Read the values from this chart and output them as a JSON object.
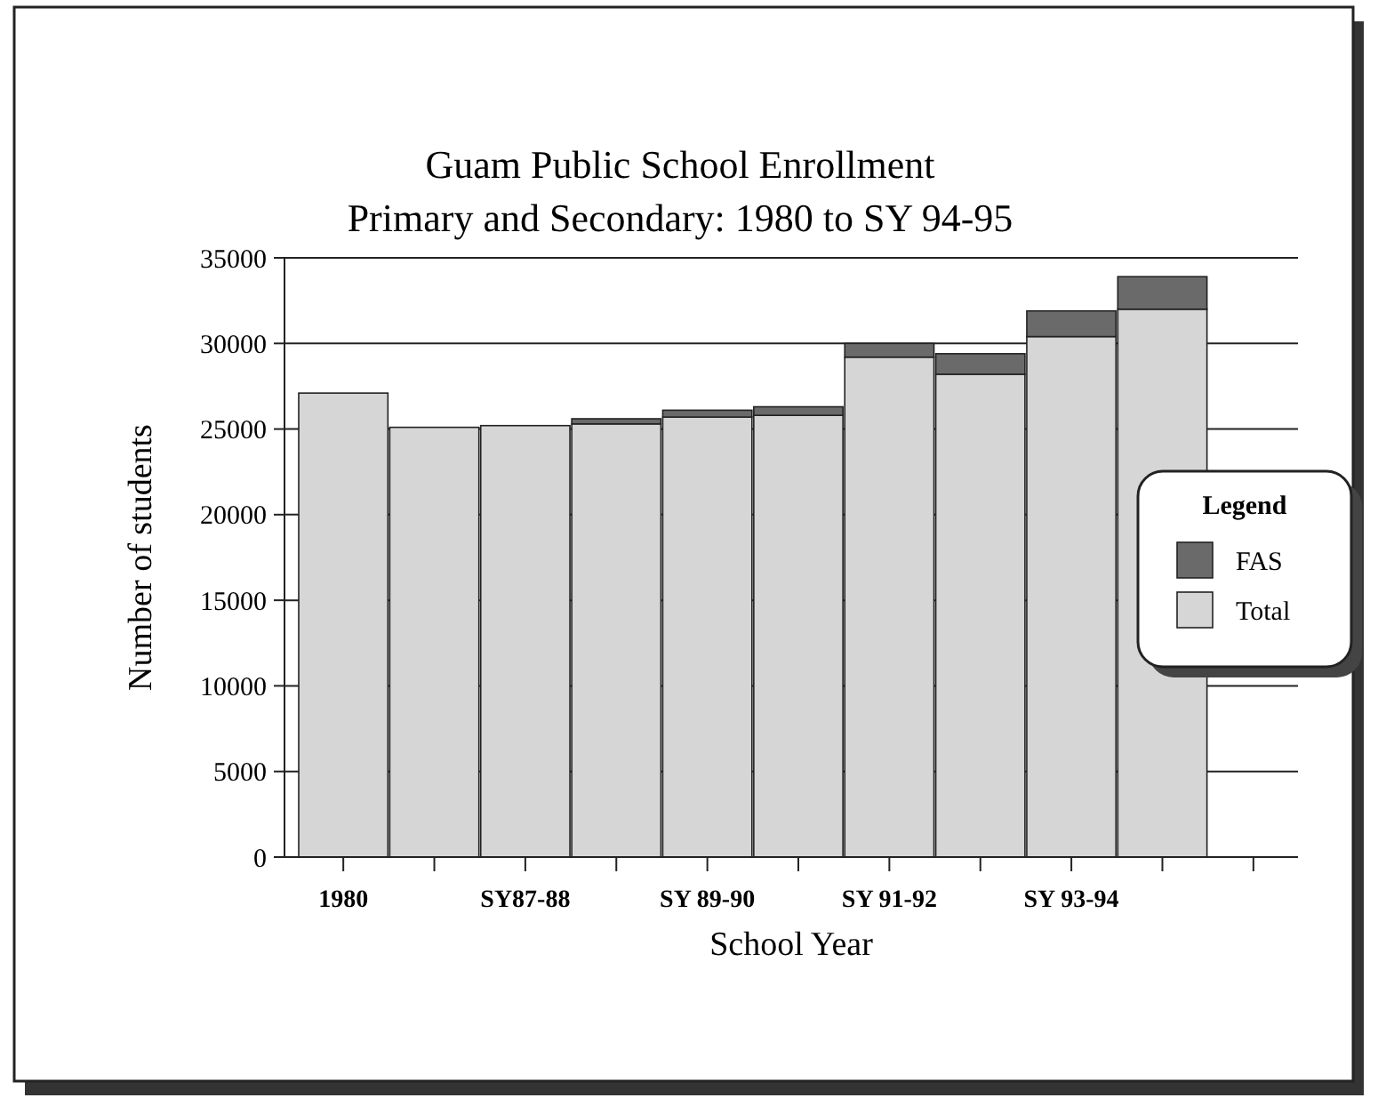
{
  "chart_data": {
    "type": "bar",
    "title": "Guam Public School Enrollment",
    "subtitle": "Primary and Secondary: 1980 to SY 94-95",
    "xlabel": "School Year",
    "ylabel": "Number of students",
    "categories": [
      "1980",
      null,
      "SY87-88",
      null,
      "SY 89-90",
      null,
      "SY 91-92",
      null,
      "SY 93-94",
      null,
      null
    ],
    "series": [
      {
        "name": "Total",
        "color": "#d6d6d6",
        "values": [
          27100,
          25100,
          25200,
          25300,
          25700,
          25800,
          29200,
          28200,
          30400,
          32000,
          null
        ]
      },
      {
        "name": "FAS",
        "color": "#6a6a6a",
        "values": [
          0,
          0,
          0,
          300,
          400,
          500,
          800,
          1200,
          1500,
          1900,
          null
        ]
      }
    ],
    "stacked": true,
    "ylim": [
      0,
      35000
    ],
    "yticks": [
      0,
      5000,
      10000,
      15000,
      20000,
      25000,
      30000,
      35000
    ],
    "grid": "y",
    "legend": "right",
    "legend_title": "Legend"
  }
}
